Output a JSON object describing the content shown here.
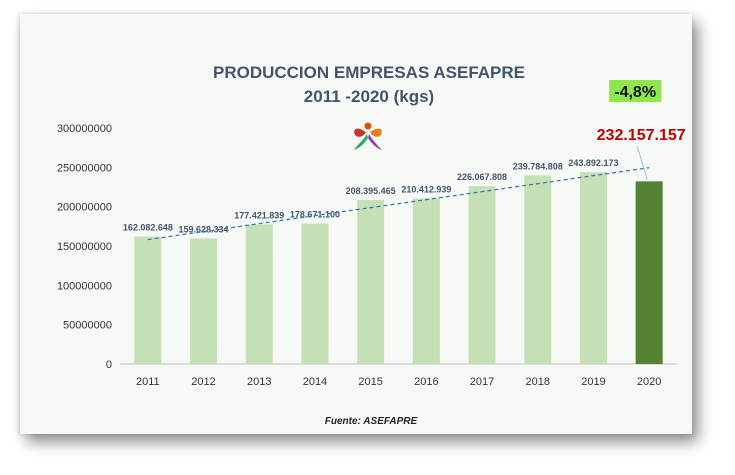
{
  "chart_data": {
    "type": "bar",
    "title": "PRODUCCION EMPRESAS ASEFAPRE",
    "subtitle": "2011 -2020 (kgs)",
    "categories": [
      "2011",
      "2012",
      "2013",
      "2014",
      "2015",
      "2016",
      "2017",
      "2018",
      "2019",
      "2020"
    ],
    "values": [
      162082648,
      159628334,
      177421839,
      178671100,
      208395465,
      210412939,
      226067808,
      239784808,
      243892173,
      232157157
    ],
    "data_labels": [
      "162.082.648",
      "159.628.334",
      "177.421.839",
      "178.671.100",
      "208.395.465",
      "210.412.939",
      "226.067.808",
      "239.784.808",
      "243.892.173",
      "232.157.157"
    ],
    "y_ticks": [
      "0",
      "50000000",
      "100000000",
      "150000000",
      "200000000",
      "250000000",
      "300000000"
    ],
    "y_tick_values": [
      0,
      50000000,
      100000000,
      150000000,
      200000000,
      250000000,
      300000000
    ],
    "ylim": [
      0,
      300000000
    ],
    "trendline": "dashed",
    "highlight": {
      "index": 9,
      "change": "-4,8%"
    },
    "colors": {
      "bar": "#c5e0b4",
      "highlight_bar": "#548235",
      "trend": "#2e75b6"
    },
    "source": "Fuente: ASEFAPRE"
  }
}
